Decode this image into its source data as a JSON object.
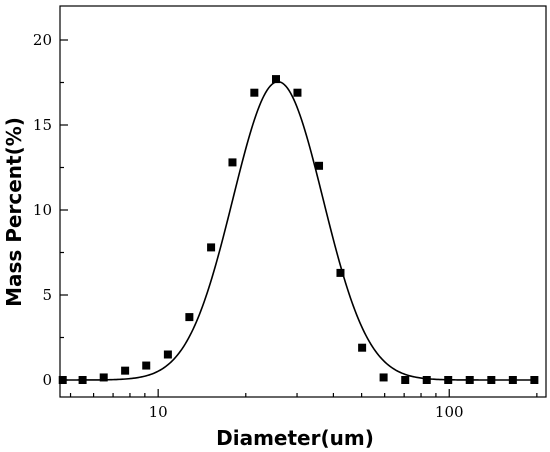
{
  "chart_data": {
    "type": "scatter",
    "title": "",
    "xlabel": "Diameter(um)",
    "ylabel": "Mass Percent(%)",
    "x_scale": "log",
    "xlim": [
      4.6,
      215
    ],
    "ylim": [
      -1,
      22
    ],
    "x_ticks": [
      10,
      100
    ],
    "x_tick_labels": [
      "10",
      "100"
    ],
    "y_ticks": [
      0,
      5,
      10,
      15,
      20
    ],
    "y_tick_labels": [
      "0",
      "5",
      "10",
      "15",
      "20"
    ],
    "grid": false,
    "legend": "none",
    "marker_color": "#000000",
    "line_color": "#000000",
    "series": [
      {
        "kind": "points",
        "x": [
          4.7,
          5.5,
          6.5,
          7.7,
          9.1,
          10.8,
          12.8,
          15.2,
          18.0,
          21.4,
          25.4,
          30.1,
          35.7,
          42.3,
          50.2,
          59.5,
          70.6,
          83.7,
          99.2,
          117.6,
          139.5,
          165.4,
          196.1
        ],
        "y": [
          0.0,
          0.0,
          0.15,
          0.55,
          0.85,
          1.5,
          3.7,
          7.8,
          12.8,
          16.9,
          17.7,
          16.9,
          12.6,
          6.3,
          1.9,
          0.15,
          0.0,
          0.0,
          0.0,
          0.0,
          0.0,
          0.0,
          0.0
        ]
      },
      {
        "kind": "fit-curve",
        "model": "gaussian-log",
        "amplitude": 17.55,
        "center": 25.8,
        "sigma_log10": 0.155,
        "x_range": [
          4.7,
          196.1
        ]
      }
    ]
  }
}
